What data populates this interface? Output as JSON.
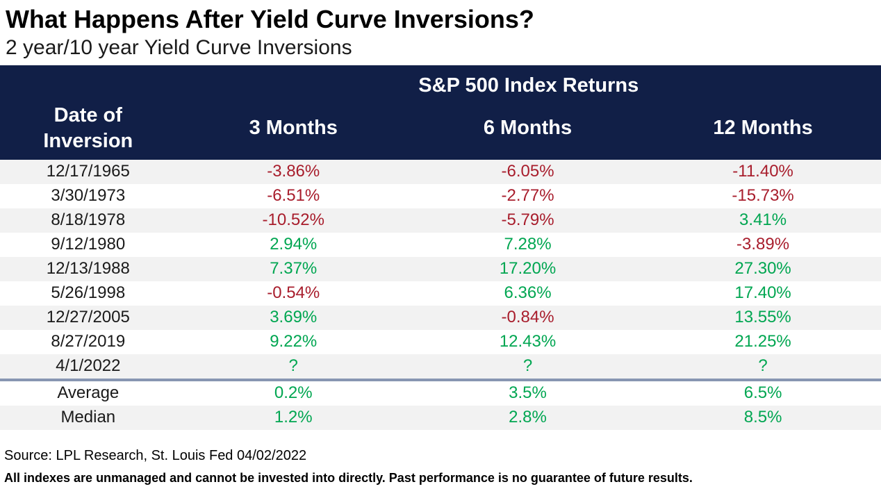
{
  "title": "What Happens After Yield Curve Inversions?",
  "subtitle": "2 year/10 year Yield Curve Inversions",
  "chart_data": {
    "type": "table",
    "title": "What Happens After Yield Curve Inversions?",
    "subtitle": "2 year/10 year Yield Curve Inversions",
    "group_header": "S&P 500 Index Returns",
    "columns": [
      "Date of Inversion",
      "3 Months",
      "6 Months",
      "12 Months"
    ],
    "rows": [
      [
        "12/17/1965",
        "-3.86%",
        "-6.05%",
        "-11.40%"
      ],
      [
        "3/30/1973",
        "-6.51%",
        "-2.77%",
        "-15.73%"
      ],
      [
        "8/18/1978",
        "-10.52%",
        "-5.79%",
        "3.41%"
      ],
      [
        "9/12/1980",
        "2.94%",
        "7.28%",
        "-3.89%"
      ],
      [
        "12/13/1988",
        "7.37%",
        "17.20%",
        "27.30%"
      ],
      [
        "5/26/1998",
        "-0.54%",
        "6.36%",
        "17.40%"
      ],
      [
        "12/27/2005",
        "3.69%",
        "-0.84%",
        "13.55%"
      ],
      [
        "8/27/2019",
        "9.22%",
        "12.43%",
        "21.25%"
      ],
      [
        "4/1/2022",
        "?",
        "?",
        "?"
      ]
    ],
    "summary_rows": [
      [
        "Average",
        "0.2%",
        "3.5%",
        "6.5%"
      ],
      [
        "Median",
        "1.2%",
        "2.8%",
        "8.5%"
      ]
    ],
    "layout_hints": {
      "striped_rows": true,
      "divider_before_summary": true
    }
  },
  "colors": {
    "header_navy": "#111f47",
    "positive_green": "#00a651",
    "negative_red": "#a81d2c",
    "stripe_gray": "#f2f2f2",
    "divider_slate": "#8796b2"
  },
  "footer": {
    "source": "Source: LPL Research, St. Louis Fed 04/02/2022",
    "disclaimer": "All indexes are unmanaged and cannot be invested into directly. Past performance is no guarantee of future results."
  }
}
